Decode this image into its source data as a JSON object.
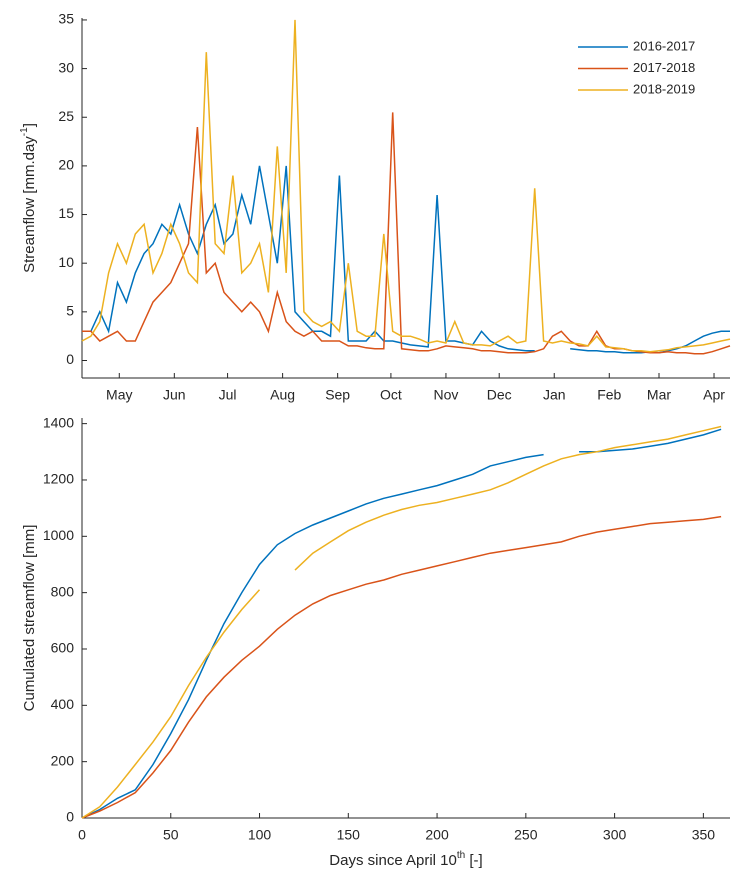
{
  "chart_data": [
    {
      "type": "line",
      "y_label": {
        "text": "Streamflow [mm.day",
        "superscript": "-1",
        "suffix": "]"
      },
      "x": [
        0,
        5,
        10,
        15,
        20,
        25,
        30,
        35,
        40,
        45,
        50,
        55,
        60,
        65,
        70,
        75,
        80,
        85,
        90,
        95,
        100,
        105,
        110,
        115,
        120,
        125,
        130,
        135,
        140,
        145,
        150,
        155,
        160,
        165,
        170,
        175,
        180,
        185,
        190,
        195,
        200,
        205,
        210,
        215,
        220,
        225,
        230,
        235,
        240,
        245,
        250,
        255,
        260,
        265,
        270,
        275,
        280,
        285,
        290,
        295,
        300,
        305,
        310,
        315,
        320,
        325,
        330,
        335,
        340,
        345,
        350,
        355,
        360,
        365
      ],
      "series": [
        {
          "name": "2016-2017",
          "color": "#0072bd",
          "values": [
            3,
            3,
            5,
            3,
            8,
            6,
            9,
            11,
            12,
            14,
            13,
            16,
            13,
            11,
            14,
            16,
            12,
            13,
            17,
            14,
            20,
            15,
            10,
            20,
            5,
            4,
            3,
            3,
            2.5,
            19,
            2,
            2,
            2,
            3,
            2,
            2,
            1.8,
            1.6,
            1.5,
            1.4,
            17,
            2,
            2,
            1.8,
            1.6,
            3,
            2,
            1.5,
            1.2,
            1.1,
            1,
            1,
            null,
            0.9,
            null,
            1.2,
            1.1,
            1,
            1,
            0.9,
            0.9,
            0.8,
            0.8,
            0.8,
            0.9,
            0.8,
            1,
            1.2,
            1.5,
            2,
            2.5,
            2.8,
            3,
            3
          ]
        },
        {
          "name": "2017-2018",
          "color": "#d95319",
          "values": [
            3,
            3,
            2,
            2.5,
            3,
            2,
            2,
            4,
            6,
            7,
            8,
            10,
            12,
            24,
            9,
            10,
            7,
            6,
            5,
            6,
            5,
            3,
            7,
            4,
            3,
            2.5,
            3,
            2,
            2,
            2,
            1.5,
            1.5,
            1.3,
            1.2,
            1.2,
            25.5,
            1.2,
            1.1,
            1,
            1,
            1.2,
            1.5,
            1.4,
            1.3,
            1.2,
            1,
            1,
            0.9,
            0.8,
            0.8,
            0.8,
            0.9,
            1.2,
            2.5,
            3,
            2,
            1.5,
            1.5,
            3,
            1.5,
            1.2,
            1.2,
            1,
            0.9,
            0.8,
            0.8,
            0.9,
            0.8,
            0.8,
            0.7,
            0.7,
            0.9,
            1.2,
            1.5
          ]
        },
        {
          "name": "2018-2019",
          "color": "#edb120",
          "values": [
            2,
            2.5,
            4,
            9,
            12,
            10,
            13,
            14,
            9,
            11,
            14,
            12,
            9,
            8,
            31.7,
            12,
            11,
            19,
            9,
            10,
            12,
            7,
            22,
            9,
            35,
            5,
            4,
            3.5,
            4,
            3,
            10,
            3,
            2.5,
            2.5,
            13,
            3,
            2.5,
            2.5,
            2.2,
            1.8,
            2,
            1.8,
            4,
            1.8,
            1.6,
            1.6,
            1.5,
            2,
            2.5,
            1.8,
            2,
            17.7,
            2,
            1.8,
            2,
            1.8,
            1.7,
            1.5,
            2.5,
            1.4,
            1.3,
            1.2,
            1,
            1,
            0.9,
            1,
            1.1,
            1.3,
            1.4,
            1.5,
            1.6,
            1.8,
            2,
            2.2
          ]
        }
      ],
      "xlim": [
        0,
        365
      ],
      "xticks": [
        {
          "value": 21,
          "label": "May"
        },
        {
          "value": 52,
          "label": "Jun"
        },
        {
          "value": 82,
          "label": "Jul"
        },
        {
          "value": 113,
          "label": "Aug"
        },
        {
          "value": 144,
          "label": "Sep"
        },
        {
          "value": 174,
          "label": "Oct"
        },
        {
          "value": 205,
          "label": "Nov"
        },
        {
          "value": 235,
          "label": "Dec"
        },
        {
          "value": 266,
          "label": "Jan"
        },
        {
          "value": 297,
          "label": "Feb"
        },
        {
          "value": 325,
          "label": "Mar"
        },
        {
          "value": 356,
          "label": "Apr"
        }
      ],
      "ylim": [
        -1.8,
        35.2
      ],
      "yticks": [
        0,
        5,
        10,
        15,
        20,
        25,
        30,
        35
      ],
      "legend": "northeast"
    },
    {
      "type": "line",
      "x_label": {
        "text": "Days since April 10",
        "superscript": "th",
        "suffix": " [-]"
      },
      "y_label": {
        "text": "Cumulated streamflow [mm]"
      },
      "x": [
        0,
        10,
        20,
        30,
        40,
        50,
        60,
        70,
        80,
        90,
        100,
        110,
        120,
        130,
        140,
        150,
        160,
        170,
        180,
        190,
        200,
        210,
        220,
        230,
        240,
        250,
        260,
        270,
        280,
        290,
        300,
        310,
        320,
        330,
        340,
        350,
        360
      ],
      "series": [
        {
          "name": "2016-2017",
          "color": "#0072bd",
          "values": [
            0,
            30,
            70,
            100,
            190,
            300,
            420,
            560,
            690,
            800,
            900,
            970,
            1010,
            1040,
            1065,
            1090,
            1115,
            1135,
            1150,
            1165,
            1180,
            1200,
            1220,
            1250,
            1265,
            1280,
            1290,
            null,
            1300,
            1300,
            1305,
            1310,
            1320,
            1330,
            1345,
            1360,
            1380
          ]
        },
        {
          "name": "2017-2018",
          "color": "#d95319",
          "values": [
            0,
            25,
            55,
            90,
            160,
            240,
            340,
            430,
            500,
            560,
            610,
            670,
            720,
            760,
            790,
            810,
            830,
            845,
            865,
            880,
            895,
            910,
            925,
            940,
            950,
            960,
            970,
            980,
            1000,
            1015,
            1025,
            1035,
            1045,
            1050,
            1055,
            1060,
            1070
          ]
        },
        {
          "name": "2018-2019",
          "color": "#edb120",
          "values": [
            0,
            40,
            110,
            190,
            270,
            360,
            470,
            570,
            660,
            740,
            810,
            null,
            880,
            940,
            980,
            1020,
            1050,
            1075,
            1095,
            1110,
            1120,
            1135,
            1150,
            1165,
            1190,
            1220,
            1250,
            1275,
            1290,
            1300,
            1315,
            1325,
            1335,
            1345,
            1360,
            1375,
            1390
          ]
        }
      ],
      "xlim": [
        0,
        365
      ],
      "xticks": [
        0,
        50,
        100,
        150,
        200,
        250,
        300,
        350
      ],
      "ylim": [
        0,
        1420
      ],
      "yticks": [
        0,
        200,
        400,
        600,
        800,
        1000,
        1200,
        1400
      ]
    }
  ]
}
